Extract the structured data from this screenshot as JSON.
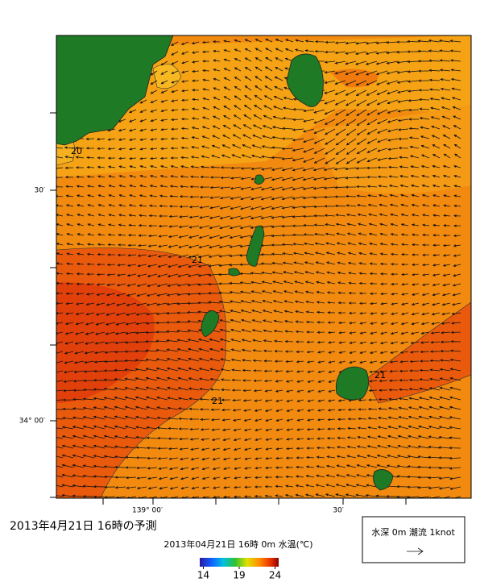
{
  "map": {
    "title": "2013年4月21日  16時の予測",
    "lat_labels": [
      "30′",
      "34° 00′"
    ],
    "lon_labels": [
      "139° 00′",
      "30′"
    ],
    "contour_labels": [
      "20",
      "21",
      "21",
      "21"
    ],
    "colorbar": {
      "title": "2013年04月21日  16時  0m  水温(℃)",
      "lim": [
        13.5,
        24.5
      ],
      "ticks": [
        14,
        19,
        24
      ]
    },
    "legend": "水深 0m  潮流  1knot"
  }
}
